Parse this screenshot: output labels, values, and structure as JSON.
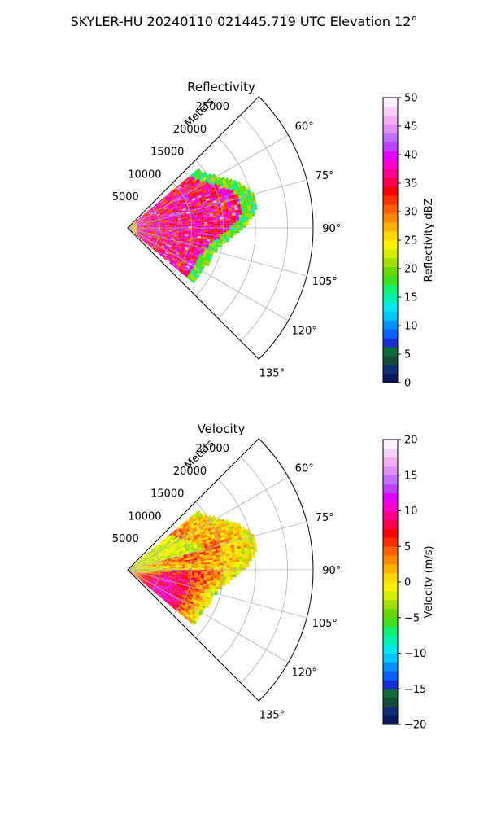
{
  "figure": {
    "suptitle": "SKYLER-HU  20240110  021445.719 UTC Elevation 12°"
  },
  "chart_data": [
    {
      "type": "heatmap",
      "projection": "polar-sector",
      "title": "Reflectivity",
      "range_label": "Meters",
      "range_ticks": [
        "5000",
        "10000",
        "15000",
        "20000",
        "25000"
      ],
      "range_tick_values": [
        5000,
        10000,
        15000,
        20000,
        25000
      ],
      "rmax": 29000,
      "theta_ticks": [
        "60°",
        "75°",
        "90°",
        "105°",
        "120°",
        "135°"
      ],
      "theta_tick_values": [
        60,
        75,
        90,
        105,
        120,
        135
      ],
      "theta_range_deg": [
        45,
        135
      ],
      "grid": true,
      "colorbar": {
        "label": "Reflectivity dBZ",
        "vmin": 0,
        "vmax": 50,
        "ticks": [
          "0",
          "5",
          "10",
          "15",
          "20",
          "25",
          "30",
          "35",
          "40",
          "45",
          "50"
        ],
        "tick_values": [
          0,
          5,
          10,
          15,
          20,
          25,
          30,
          35,
          40,
          45,
          50
        ],
        "colors": [
          "#0a1a5a",
          "#0f2d72",
          "#174b3a",
          "#0e6a3a",
          "#1a2fd0",
          "#0a60ff",
          "#0090ff",
          "#00c8ff",
          "#00e8f0",
          "#00f0b0",
          "#10f070",
          "#40e020",
          "#66d800",
          "#a0e000",
          "#d8ec00",
          "#fff000",
          "#ffd800",
          "#ffb000",
          "#ff8a00",
          "#ff6000",
          "#ff3000",
          "#ff0000",
          "#ff0050",
          "#ff0090",
          "#ff00d0",
          "#e000ff",
          "#c040ff",
          "#c070ff",
          "#e090f0",
          "#f0b0f0",
          "#f8d0f8",
          "#fff0ff"
        ]
      },
      "echo": {
        "value_range": [
          10,
          50
        ],
        "dominant_range": [
          30,
          42
        ],
        "edge_range": [
          15,
          22
        ],
        "max_range_m": 22000,
        "azimuth_coverage_deg": [
          50,
          130
        ]
      }
    },
    {
      "type": "heatmap",
      "projection": "polar-sector",
      "title": "Velocity",
      "range_label": "Meters",
      "range_ticks": [
        "5000",
        "10000",
        "15000",
        "20000",
        "25000"
      ],
      "range_tick_values": [
        5000,
        10000,
        15000,
        20000,
        25000
      ],
      "rmax": 29000,
      "theta_ticks": [
        "60°",
        "75°",
        "90°",
        "105°",
        "120°",
        "135°"
      ],
      "theta_tick_values": [
        60,
        75,
        90,
        105,
        120,
        135
      ],
      "theta_range_deg": [
        45,
        135
      ],
      "grid": true,
      "colorbar": {
        "label": "Velocity (m/s)",
        "vmin": -20,
        "vmax": 20,
        "ticks": [
          "−20",
          "−15",
          "−10",
          "−5",
          "0",
          "5",
          "10",
          "15",
          "20"
        ],
        "tick_values": [
          -20,
          -15,
          -10,
          -5,
          0,
          5,
          10,
          15,
          20
        ],
        "colors": [
          "#0a1a5a",
          "#0f2d72",
          "#174b3a",
          "#0e6a3a",
          "#1a2fd0",
          "#0a60ff",
          "#0090ff",
          "#00c8ff",
          "#00e8f0",
          "#00f0b0",
          "#10f070",
          "#40e020",
          "#66d800",
          "#a0e000",
          "#d8ec00",
          "#fff000",
          "#ffd800",
          "#ffb000",
          "#ff8a00",
          "#ff6000",
          "#ff3000",
          "#ff0000",
          "#ff0050",
          "#ff0090",
          "#ff00d0",
          "#e000ff",
          "#c040ff",
          "#c070ff",
          "#e090f0",
          "#f0b0f0",
          "#f8d0f8",
          "#fff0ff"
        ]
      },
      "echo": {
        "value_range": [
          -12,
          16
        ],
        "max_range_m": 22000,
        "azimuth_coverage_deg": [
          50,
          130
        ]
      }
    }
  ]
}
